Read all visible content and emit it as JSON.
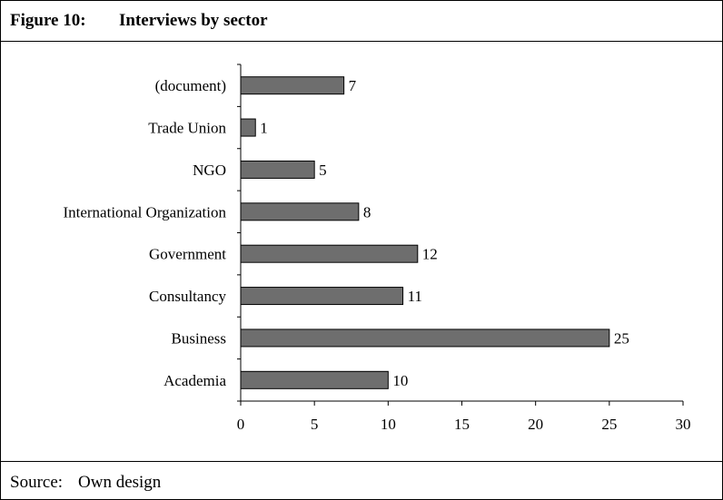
{
  "figure": {
    "label": "Figure 10:",
    "title": "Interviews by sector"
  },
  "source": {
    "label": "Source:",
    "text": "Own design"
  },
  "chart_data": {
    "type": "bar",
    "orientation": "horizontal",
    "categories": [
      "(document)",
      "Trade Union",
      "NGO",
      "International Organization",
      "Government",
      "Consultancy",
      "Business",
      "Academia"
    ],
    "values": [
      7,
      1,
      5,
      8,
      12,
      11,
      25,
      10
    ],
    "xlim": [
      0,
      30
    ],
    "xticks": [
      0,
      5,
      10,
      15,
      20,
      25,
      30
    ],
    "grid": false,
    "legend": "none",
    "bar_color": "#6e6e6e",
    "data_labels": true
  }
}
